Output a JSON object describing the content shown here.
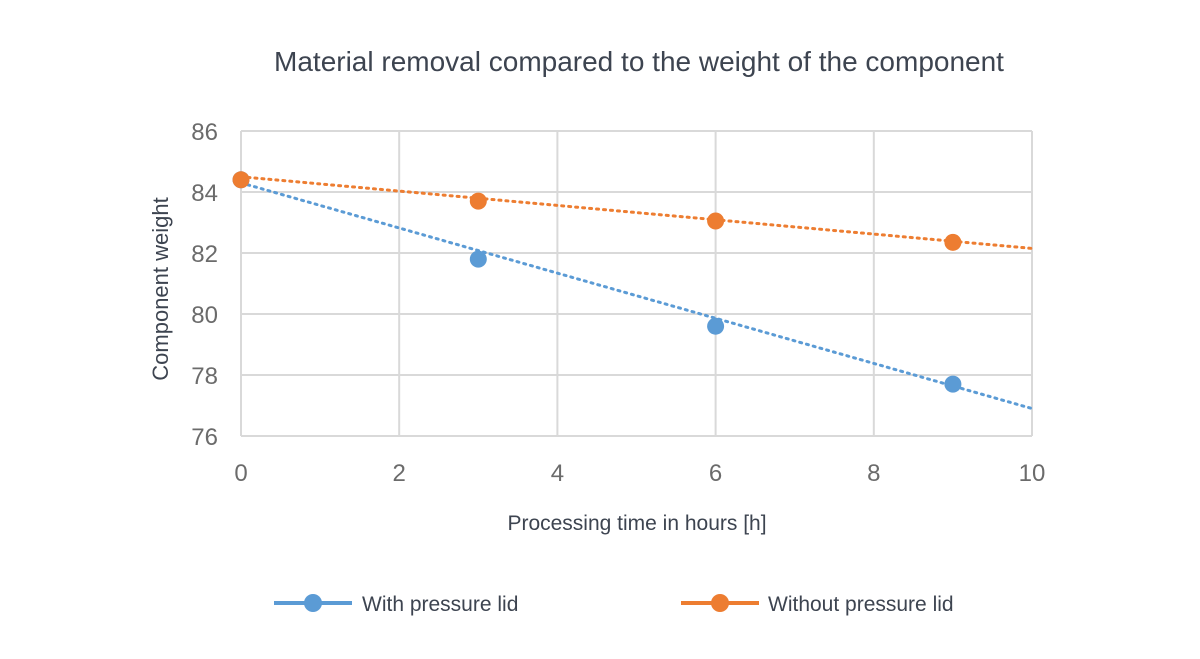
{
  "chart_data": {
    "type": "scatter",
    "title": "Material removal compared to the weight of the component",
    "xlabel": "Processing time in hours [h]",
    "ylabel": "Component weight",
    "xlim": [
      0,
      10
    ],
    "ylim": [
      76,
      86
    ],
    "xticks": [
      0,
      2,
      4,
      6,
      8,
      10
    ],
    "yticks": [
      76,
      78,
      80,
      82,
      84,
      86
    ],
    "grid": true,
    "legend_position": "bottom",
    "series": [
      {
        "name": "With pressure lid",
        "color": "#5b9bd5",
        "x": [
          0,
          3,
          6,
          9
        ],
        "y": [
          84.4,
          81.8,
          79.6,
          77.7
        ],
        "trendline": {
          "type": "linear",
          "x": [
            0,
            10
          ],
          "y": [
            84.3,
            76.9
          ]
        }
      },
      {
        "name": "Without pressure lid",
        "color": "#ed7d31",
        "x": [
          0,
          3,
          6,
          9
        ],
        "y": [
          84.4,
          83.7,
          83.05,
          82.35
        ],
        "trendline": {
          "type": "linear",
          "x": [
            0,
            10
          ],
          "y": [
            84.5,
            82.15
          ]
        }
      }
    ]
  }
}
